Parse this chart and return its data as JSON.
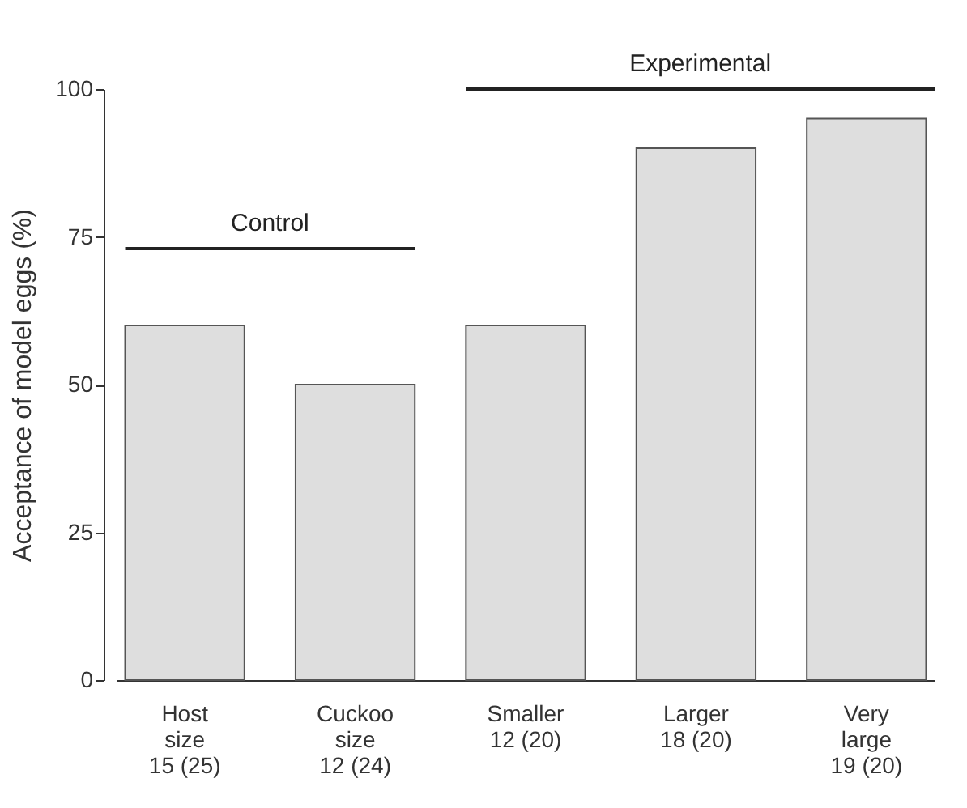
{
  "chart_data": {
    "type": "bar",
    "categories": [
      "Host\nsize\n15 (25)",
      "Cuckoo\nsize\n12 (24)",
      "Smaller\n12 (20)",
      "Larger\n18 (20)",
      "Very\nlarge\n19 (20)"
    ],
    "values": [
      60,
      50,
      60,
      90,
      95
    ],
    "color": "#dedede",
    "ylabel": "Acceptance of model eggs (%)",
    "ylim": [
      0,
      100
    ],
    "yticks": [
      0,
      25,
      50,
      75,
      100
    ],
    "annotations": [
      "Control",
      "Experimental"
    ],
    "grid": false
  }
}
